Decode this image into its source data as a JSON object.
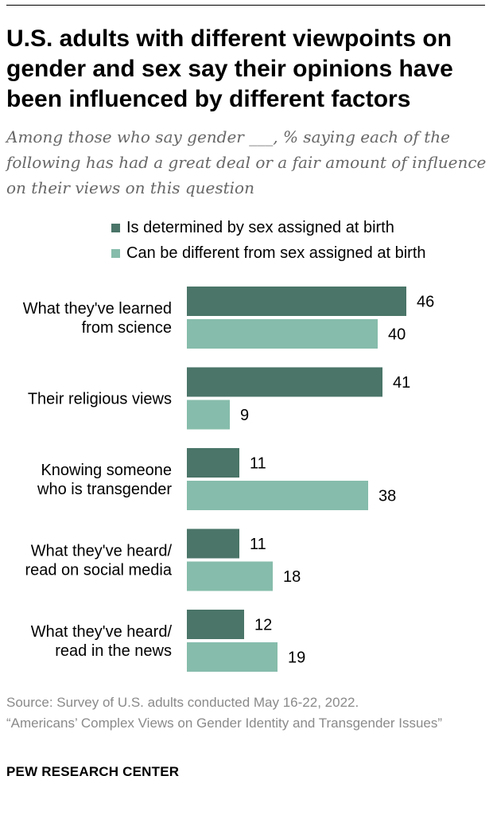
{
  "title": "U.S. adults with different viewpoints on gender and sex say their opinions have been influenced by different factors",
  "subtitle": "Among those who say gender ___, % saying each of the following has had a great deal or a fair amount of influence on their views on this question",
  "source": {
    "line1": "Source: Survey of U.S. adults conducted May 16-22, 2022.",
    "line2": "“Americans’ Complex Views on Gender Identity and Transgender Issues”"
  },
  "organization": "PEW RESEARCH CENTER",
  "colors": {
    "series1": "#4a7568",
    "series2": "#86bcab",
    "text": "#000000",
    "muted": "#8a8a8a"
  },
  "chart_data": {
    "type": "bar",
    "orientation": "horizontal",
    "title": "U.S. adults with different viewpoints on gender and sex say their opinions have been influenced by different factors",
    "subtitle": "Among those who say gender ___, % saying each of the following has had a great deal or a fair amount of influence on their views on this question",
    "categories": [
      [
        "What they've learned",
        "from science"
      ],
      [
        "Their religious views"
      ],
      [
        "Knowing someone",
        "who is transgender"
      ],
      [
        "What they've heard/",
        "read on social media"
      ],
      [
        "What they've heard/",
        "read in the news"
      ]
    ],
    "series": [
      {
        "name": "Is determined by sex assigned at birth",
        "color": "#4a7568",
        "values": [
          46,
          41,
          11,
          11,
          12
        ]
      },
      {
        "name": "Can be different from sex assigned at birth",
        "color": "#86bcab",
        "values": [
          40,
          9,
          38,
          18,
          19
        ]
      }
    ],
    "xlim": [
      0,
      100
    ],
    "legend": "top",
    "grid": false,
    "data_labels": true
  }
}
